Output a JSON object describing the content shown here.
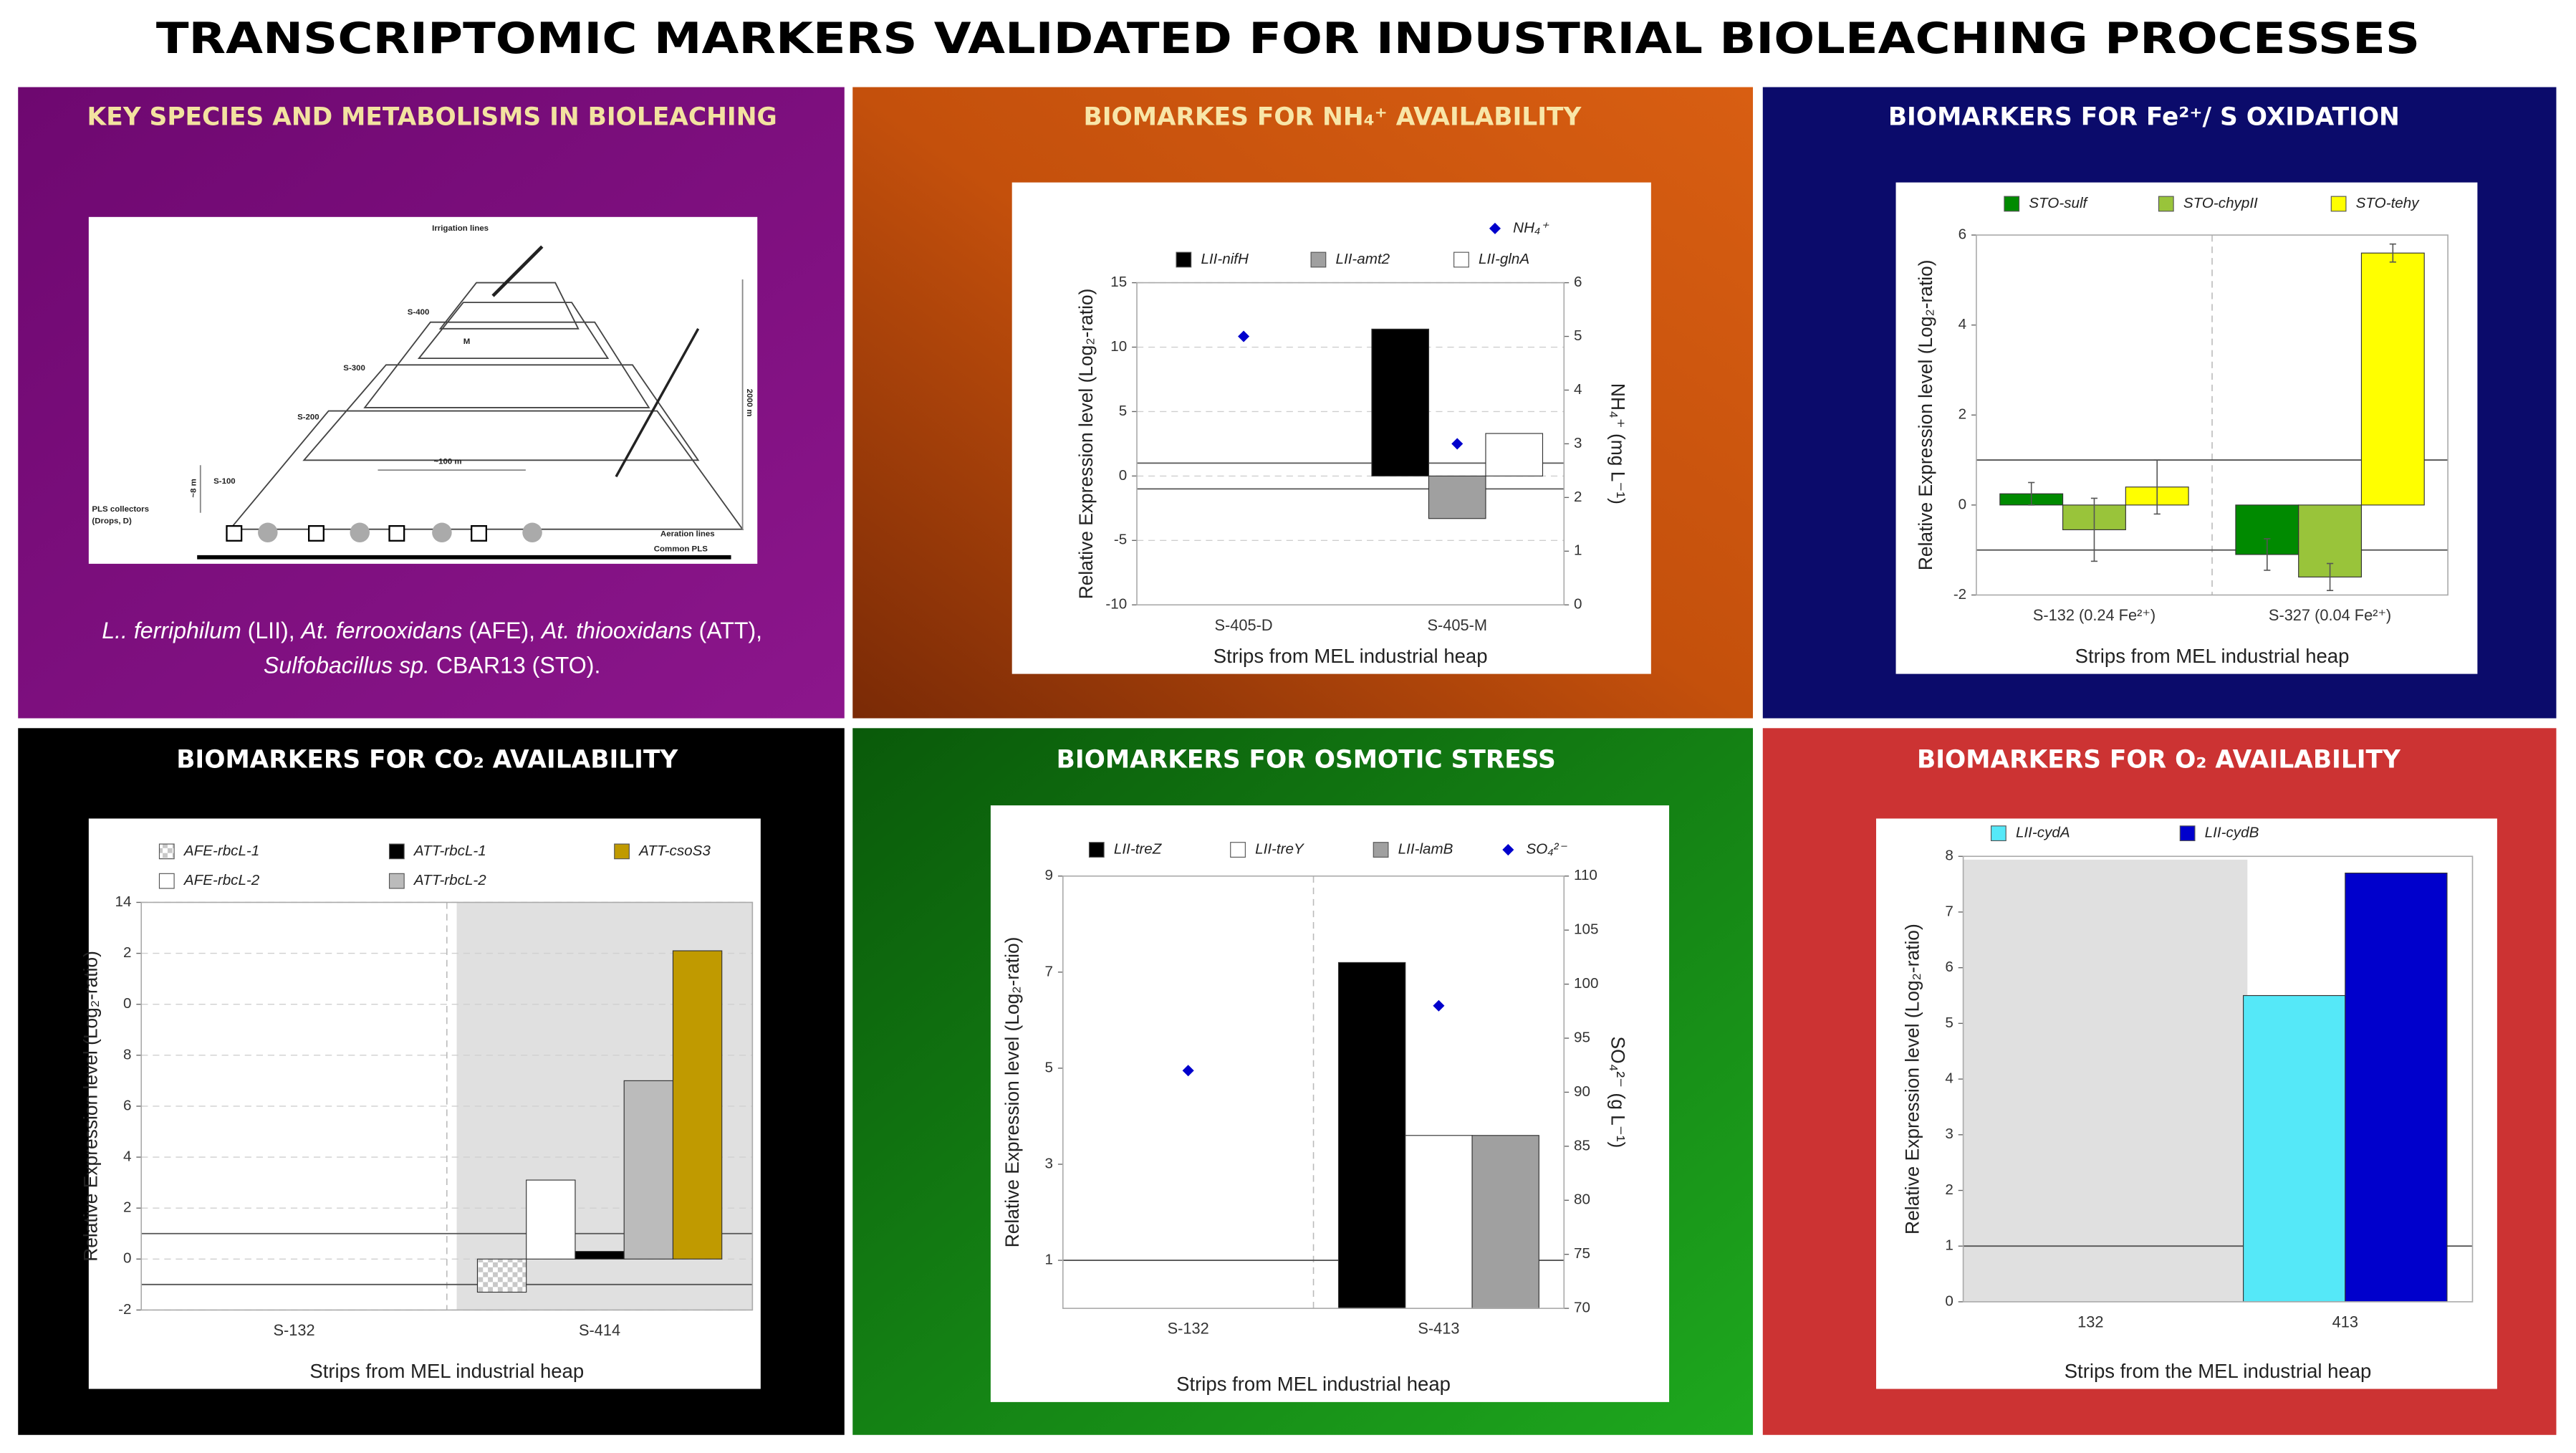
{
  "title": "TRANSCRIPTOMIC MARKERS VALIDATED FOR INDUSTRIAL BIOLEACHING PROCESSES",
  "species_panel": {
    "title": "KEY SPECIES AND METABOLISMS IN BIOLEACHING",
    "diagram_labels": {
      "irrigation": "Irrigation lines",
      "s400": "S-400",
      "m": "M",
      "s300": "S-300",
      "s200": "S-200",
      "s100": "S-100",
      "pls1": "PLS collectors",
      "pls2": "(Drops, D)",
      "width": "~100 m",
      "aeration": "Aeration lines",
      "common": "Common PLS",
      "length": "2000 m",
      "height": "~8 m"
    },
    "caption": [
      [
        {
          "text": "L.. ferriphilum",
          "italic": true
        },
        {
          "text": " (LII), ",
          "italic": false
        },
        {
          "text": "At. ferrooxidans",
          "italic": true
        },
        {
          "text": " (AFE), ",
          "italic": false
        },
        {
          "text": "At. thiooxidans",
          "italic": true
        },
        {
          "text": " (ATT),",
          "italic": false
        }
      ],
      [
        {
          "text": "Sulfobacillus sp.",
          "italic": true
        },
        {
          "text": " CBAR13 (STO).",
          "italic": false
        }
      ]
    ]
  },
  "chart_data": [
    {
      "type": "bar",
      "title": "BIOMARKES FOR NH₄⁺ AVAILABILITY",
      "ylabel": "Relative Expression level (Log₂-ratio)",
      "y2label": "NH₄⁺ (mg L⁻¹)",
      "xlabel": "Strips from MEL industrial heap",
      "categories": [
        "S-405-D",
        "S-405-M"
      ],
      "series": [
        {
          "name": "LII-nifH",
          "color": "#000000",
          "values": [
            null,
            11.4
          ]
        },
        {
          "name": "LII-amt2",
          "color": "#a0a0a0",
          "values": [
            null,
            -3.3
          ]
        },
        {
          "name": "LII-glnA",
          "color": "#ffffff",
          "values": [
            null,
            3.3
          ]
        },
        {
          "name": "NH₄⁺",
          "type": "scatter",
          "axis": "y2",
          "color": "#0000cc",
          "values": [
            5,
            3
          ]
        }
      ],
      "ylim": [
        -10,
        15
      ],
      "yticks": [
        -10,
        -5,
        0,
        5,
        10,
        15
      ],
      "y2lim": [
        0,
        6
      ],
      "y2ticks": [
        0,
        1,
        2,
        3,
        4,
        5,
        6
      ],
      "reference_lines": [
        1,
        -1
      ],
      "grid": true,
      "category_dividers": false
    },
    {
      "type": "bar",
      "title": "BIOMARKERS FOR Fe²⁺/ S OXIDATION",
      "ylabel": "Relative Expression level (Log₂-ratio)",
      "xlabel": "Strips from MEL industrial heap",
      "categories": [
        "S-132 (0.24 Fe²⁺)",
        "S-327 (0.04 Fe²⁺)"
      ],
      "series": [
        {
          "name": "STO-sulf",
          "color": "#008a00",
          "values": [
            0.25,
            -1.1
          ],
          "errors": [
            0.25,
            0.35
          ]
        },
        {
          "name": "STO-chypII",
          "color": "#99c43a",
          "values": [
            -0.55,
            -1.6
          ],
          "errors": [
            0.7,
            0.3
          ]
        },
        {
          "name": "STO-tehy",
          "color": "#ffff00",
          "values": [
            0.4,
            5.6
          ],
          "errors": [
            0.6,
            0.2
          ]
        }
      ],
      "ylim": [
        -2,
        6
      ],
      "yticks": [
        -2,
        0,
        2,
        4,
        6
      ],
      "reference_lines": [
        1,
        -1
      ],
      "grid": false,
      "category_dividers": true
    },
    {
      "type": "bar",
      "title": "BIOMARKERS FOR CO₂ AVAILABILITY",
      "ylabel": "Relative Expression level (Log₂-ratio)",
      "xlabel": "Strips from MEL industrial heap",
      "categories": [
        "S-132",
        "S-414"
      ],
      "series": [
        {
          "name": "AFE-rbcL-1",
          "color": "#dddddd",
          "pattern": "checker",
          "values": [
            null,
            -1.3
          ]
        },
        {
          "name": "AFE-rbcL-2",
          "color": "#ffffff",
          "values": [
            null,
            3.1
          ]
        },
        {
          "name": "ATT-rbcL-1",
          "color": "#000000",
          "values": [
            null,
            0.3
          ]
        },
        {
          "name": "ATT-rbcL-2",
          "color": "#bbbbbb",
          "values": [
            null,
            7.0
          ]
        },
        {
          "name": "ATT-csoS3",
          "color": "#c09a00",
          "values": [
            null,
            12.1
          ]
        }
      ],
      "ylim": [
        -2,
        14
      ],
      "yticks": [
        -2,
        0,
        2,
        4,
        6,
        8,
        {
          "value": 10,
          "label": "0"
        },
        {
          "value": 12,
          "label": "2"
        },
        14
      ],
      "reference_lines": [
        1,
        -1
      ],
      "grid": true,
      "category_dividers": true
    },
    {
      "type": "bar",
      "title": "BIOMARKERS FOR OSMOTIC STRESS",
      "ylabel": "Relative Expression level (Log₂-ratio)",
      "y2label": "SO₄²⁻ (g L⁻¹)",
      "xlabel": "Strips from MEL industrial heap",
      "categories": [
        "S-132",
        "S-413"
      ],
      "series": [
        {
          "name": "LII-treZ",
          "color": "#000000",
          "values": [
            null,
            7.2
          ]
        },
        {
          "name": "LII-treY",
          "color": "#ffffff",
          "values": [
            null,
            3.6
          ]
        },
        {
          "name": "LII-lamB",
          "color": "#a0a0a0",
          "values": [
            null,
            3.6
          ]
        },
        {
          "name": "SO₄²⁻",
          "type": "scatter",
          "axis": "y2",
          "color": "#0000cc",
          "values": [
            92,
            98
          ]
        }
      ],
      "ylim": [
        0,
        9
      ],
      "yticks": [
        1,
        3,
        5,
        7,
        9
      ],
      "y2lim": [
        70,
        110
      ],
      "y2ticks": [
        70,
        75,
        80,
        85,
        90,
        95,
        100,
        105,
        110
      ],
      "reference_lines": [
        1
      ],
      "grid": false,
      "category_dividers": true
    },
    {
      "type": "bar",
      "title": "BIOMARKERS FOR O₂ AVAILABILITY",
      "ylabel": "Relative Expression level (Log₂-ratio)",
      "xlabel": "Strips from the MEL industrial heap",
      "categories": [
        "132",
        "413"
      ],
      "series": [
        {
          "name": "LII-cydA",
          "color": "#55e8f8",
          "values": [
            null,
            5.5
          ]
        },
        {
          "name": "LII-cydB",
          "color": "#0000cc",
          "values": [
            null,
            7.7
          ]
        }
      ],
      "ylim": [
        0,
        8
      ],
      "yticks": [
        0,
        1,
        2,
        3,
        4,
        5,
        6,
        7,
        8
      ],
      "reference_lines": [
        1
      ],
      "grid": false,
      "category_dividers": false
    }
  ]
}
